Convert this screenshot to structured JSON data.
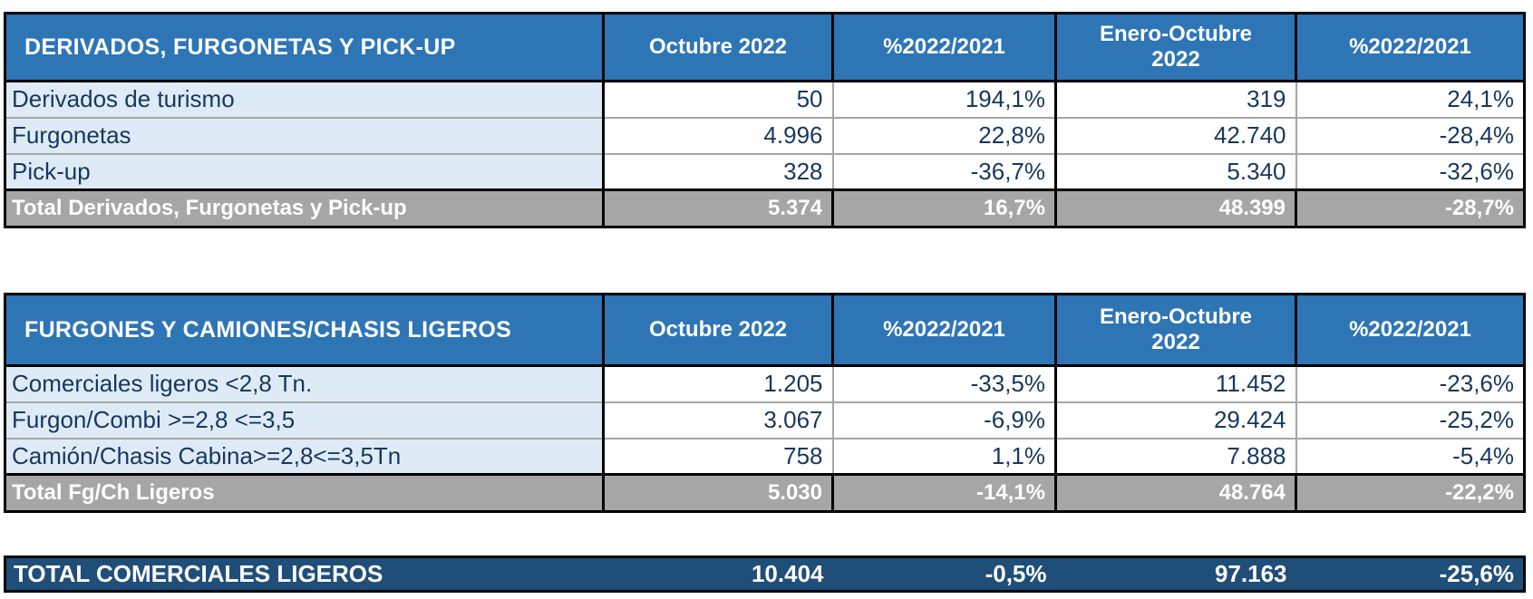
{
  "colors": {
    "header_blue": "#2E75B6",
    "label_row_blue": "#DEEBF7",
    "total_row_gray": "#A6A6A6",
    "grand_total_navy": "#1F4E79",
    "cell_text_navy": "#17375E",
    "border_black": "#000000"
  },
  "tables": [
    {
      "title": "DERIVADOS, FURGONETAS Y PICK-UP",
      "columns": [
        "Octubre 2022",
        "%2022/2021",
        "Enero-Octubre 2022",
        "%2022/2021"
      ],
      "rows": [
        {
          "label": "Derivados de turismo",
          "values": [
            "50",
            "194,1%",
            "319",
            "24,1%"
          ]
        },
        {
          "label": "Furgonetas",
          "values": [
            "4.996",
            "22,8%",
            "42.740",
            "-28,4%"
          ]
        },
        {
          "label": "Pick-up",
          "values": [
            "328",
            "-36,7%",
            "5.340",
            "-32,6%"
          ]
        }
      ],
      "total": {
        "label": "Total Derivados, Furgonetas y Pick-up",
        "values": [
          "5.374",
          "16,7%",
          "48.399",
          "-28,7%"
        ]
      }
    },
    {
      "title": "FURGONES Y CAMIONES/CHASIS LIGEROS",
      "columns": [
        "Octubre 2022",
        "%2022/2021",
        "Enero-Octubre 2022",
        "%2022/2021"
      ],
      "rows": [
        {
          "label": "Comerciales ligeros <2,8 Tn.",
          "values": [
            "1.205",
            "-33,5%",
            "11.452",
            "-23,6%"
          ]
        },
        {
          "label": "Furgon/Combi >=2,8 <=3,5",
          "values": [
            "3.067",
            "-6,9%",
            "29.424",
            "-25,2%"
          ]
        },
        {
          "label": "Camión/Chasis Cabina>=2,8<=3,5Tn",
          "values": [
            "758",
            "1,1%",
            "7.888",
            "-5,4%"
          ]
        }
      ],
      "total": {
        "label": "Total Fg/Ch Ligeros",
        "values": [
          "5.030",
          "-14,1%",
          "48.764",
          "-22,2%"
        ]
      }
    }
  ],
  "grand_total": {
    "label": "TOTAL COMERCIALES LIGEROS",
    "values": [
      "10.404",
      "-0,5%",
      "97.163",
      "-25,6%"
    ]
  }
}
